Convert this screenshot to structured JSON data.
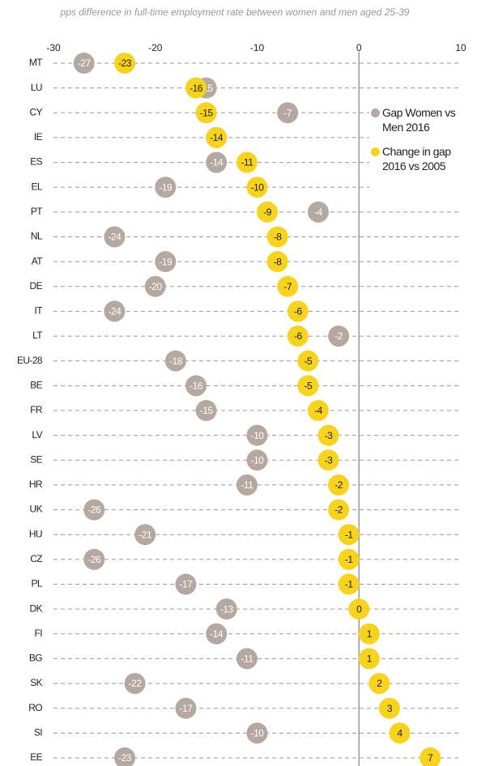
{
  "chart_data": {
    "type": "dot",
    "title": "pps difference in full-time employment rate between women and men aged 25-39",
    "categories": [
      "MT",
      "LU",
      "CY",
      "IE",
      "ES",
      "EL",
      "PT",
      "NL",
      "AT",
      "DE",
      "IT",
      "LT",
      "EU-28",
      "BE",
      "FR",
      "LV",
      "SE",
      "HR",
      "UK",
      "HU",
      "CZ",
      "PL",
      "DK",
      "FI",
      "BG",
      "SK",
      "RO",
      "SI",
      "EE"
    ],
    "series": [
      {
        "name": "Gap Women vs Men 2016",
        "color": "#b5a8a0",
        "label_color": "#ffffff",
        "values": [
          -27,
          -15,
          -7,
          -14,
          -14,
          -19,
          -4,
          -24,
          -19,
          -20,
          -24,
          -2,
          -18,
          -16,
          -15,
          -10,
          -10,
          -11,
          -26,
          -21,
          -26,
          -17,
          -13,
          -14,
          -11,
          -22,
          -17,
          -10,
          -23
        ]
      },
      {
        "name": "Change in gap 2016 vs 2005",
        "color": "#f7d31f",
        "label_color": "#222222",
        "values": [
          -23,
          -16,
          -15,
          -14,
          -11,
          -10,
          -9,
          -8,
          -8,
          -7,
          -6,
          -6,
          -5,
          -5,
          -4,
          -3,
          -3,
          -2,
          -2,
          -1,
          -1,
          -1,
          0,
          1,
          1,
          2,
          3,
          4,
          7
        ]
      }
    ],
    "xlim": [
      -30,
      10
    ],
    "xticks": [
      -30,
      -20,
      -10,
      0,
      10
    ],
    "legend": "right"
  }
}
